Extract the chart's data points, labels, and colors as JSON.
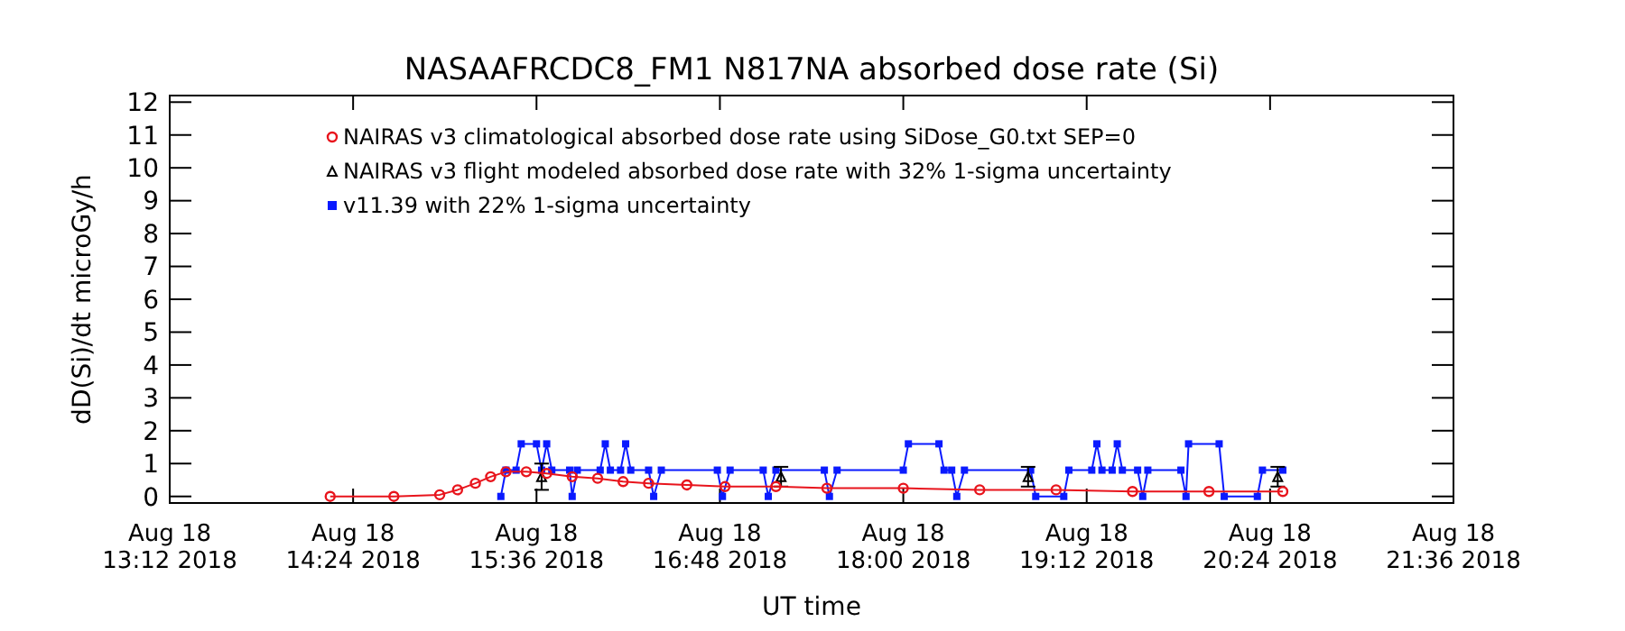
{
  "chart_data": {
    "type": "line",
    "title": "NASAAFRCDC8_FM1   N817NA absorbed dose rate (Si)",
    "xlabel": "UT time",
    "ylabel": "dD(Si)/dt microGy/h",
    "xlim": [
      "2018-08-18T13:12",
      "2018-08-18T21:36"
    ],
    "xticks": [
      {
        "value": "2018-08-18T13:12",
        "label": "Aug 18\n13:12 2018"
      },
      {
        "value": "2018-08-18T14:24",
        "label": "Aug 18\n14:24 2018"
      },
      {
        "value": "2018-08-18T15:36",
        "label": "Aug 18\n15:36 2018"
      },
      {
        "value": "2018-08-18T16:48",
        "label": "Aug 18\n16:48 2018"
      },
      {
        "value": "2018-08-18T18:00",
        "label": "Aug 18\n18:00 2018"
      },
      {
        "value": "2018-08-18T19:12",
        "label": "Aug 18\n19:12 2018"
      },
      {
        "value": "2018-08-18T20:24",
        "label": "Aug 18\n20:24 2018"
      },
      {
        "value": "2018-08-18T21:36",
        "label": "Aug 18\n21:36 2018"
      }
    ],
    "ylim": [
      -0.2,
      12.2
    ],
    "yticks": [
      0,
      1,
      2,
      3,
      4,
      5,
      6,
      7,
      8,
      9,
      10,
      11,
      12
    ],
    "grid": false,
    "legend": "top left",
    "series": [
      {
        "name": "NAIRAS v3 climatological absorbed dose rate using SiDose_G0.txt SEP=0",
        "color": "#e8141c",
        "marker": "circle",
        "line_style": "solid",
        "x": [
          "2018-08-18T14:15",
          "2018-08-18T14:40",
          "2018-08-18T14:58",
          "2018-08-18T15:05",
          "2018-08-18T15:12",
          "2018-08-18T15:18",
          "2018-08-18T15:24",
          "2018-08-18T15:32",
          "2018-08-18T15:40",
          "2018-08-18T15:50",
          "2018-08-18T16:00",
          "2018-08-18T16:10",
          "2018-08-18T16:20",
          "2018-08-18T16:35",
          "2018-08-18T16:50",
          "2018-08-18T17:10",
          "2018-08-18T17:30",
          "2018-08-18T18:00",
          "2018-08-18T18:30",
          "2018-08-18T19:00",
          "2018-08-18T19:30",
          "2018-08-18T20:00",
          "2018-08-18T20:29"
        ],
        "values": [
          0,
          0,
          0.05,
          0.2,
          0.4,
          0.6,
          0.75,
          0.75,
          0.7,
          0.6,
          0.55,
          0.45,
          0.4,
          0.35,
          0.3,
          0.3,
          0.25,
          0.25,
          0.2,
          0.2,
          0.15,
          0.15,
          0.15
        ]
      },
      {
        "name": "NAIRAS v3 flight modeled absorbed dose rate with 32% 1-sigma uncertainty",
        "color": "#000000",
        "type": "scatter",
        "marker": "triangle",
        "x": [
          "2018-08-18T15:38",
          "2018-08-18T17:12",
          "2018-08-18T18:49",
          "2018-08-18T20:27"
        ],
        "values": [
          0.6,
          0.6,
          0.6,
          0.6
        ],
        "errors": [
          0.4,
          0.3,
          0.3,
          0.3
        ]
      },
      {
        "name": "v11.39 with 22% 1-sigma uncertainty",
        "color": "#0a1aff",
        "marker": "square",
        "line_style": "solid",
        "x": [
          "2018-08-18T15:22",
          "2018-08-18T15:24",
          "2018-08-18T15:28",
          "2018-08-18T15:30",
          "2018-08-18T15:36",
          "2018-08-18T15:38",
          "2018-08-18T15:40",
          "2018-08-18T15:42",
          "2018-08-18T15:49",
          "2018-08-18T15:50",
          "2018-08-18T15:52",
          "2018-08-18T16:01",
          "2018-08-18T16:03",
          "2018-08-18T16:05",
          "2018-08-18T16:09",
          "2018-08-18T16:11",
          "2018-08-18T16:13",
          "2018-08-18T16:20",
          "2018-08-18T16:22",
          "2018-08-18T16:25",
          "2018-08-18T16:47",
          "2018-08-18T16:49",
          "2018-08-18T16:52",
          "2018-08-18T17:05",
          "2018-08-18T17:07",
          "2018-08-18T17:10",
          "2018-08-18T17:29",
          "2018-08-18T17:31",
          "2018-08-18T17:34",
          "2018-08-18T18:00",
          "2018-08-18T18:02",
          "2018-08-18T18:14",
          "2018-08-18T18:16",
          "2018-08-18T18:19",
          "2018-08-18T18:21",
          "2018-08-18T18:24",
          "2018-08-18T18:50",
          "2018-08-18T18:52",
          "2018-08-18T19:03",
          "2018-08-18T19:05",
          "2018-08-18T19:14",
          "2018-08-18T19:16",
          "2018-08-18T19:18",
          "2018-08-18T19:22",
          "2018-08-18T19:24",
          "2018-08-18T19:26",
          "2018-08-18T19:32",
          "2018-08-18T19:34",
          "2018-08-18T19:36",
          "2018-08-18T19:49",
          "2018-08-18T19:51",
          "2018-08-18T19:52",
          "2018-08-18T20:04",
          "2018-08-18T20:06",
          "2018-08-18T20:19",
          "2018-08-18T20:21",
          "2018-08-18T20:29"
        ],
        "values": [
          0,
          0.8,
          0.8,
          1.6,
          1.6,
          0.8,
          1.6,
          0.8,
          0.8,
          0,
          0.8,
          0.8,
          1.6,
          0.8,
          0.8,
          1.6,
          0.8,
          0.8,
          0,
          0.8,
          0.8,
          0,
          0.8,
          0.8,
          0,
          0.8,
          0.8,
          0,
          0.8,
          0.8,
          1.6,
          1.6,
          0.8,
          0.8,
          0,
          0.8,
          0.8,
          0,
          0,
          0.8,
          0.8,
          1.6,
          0.8,
          0.8,
          1.6,
          0.8,
          0.8,
          0,
          0.8,
          0.8,
          0,
          1.6,
          1.6,
          0,
          0,
          0.8,
          0.8
        ]
      }
    ]
  }
}
